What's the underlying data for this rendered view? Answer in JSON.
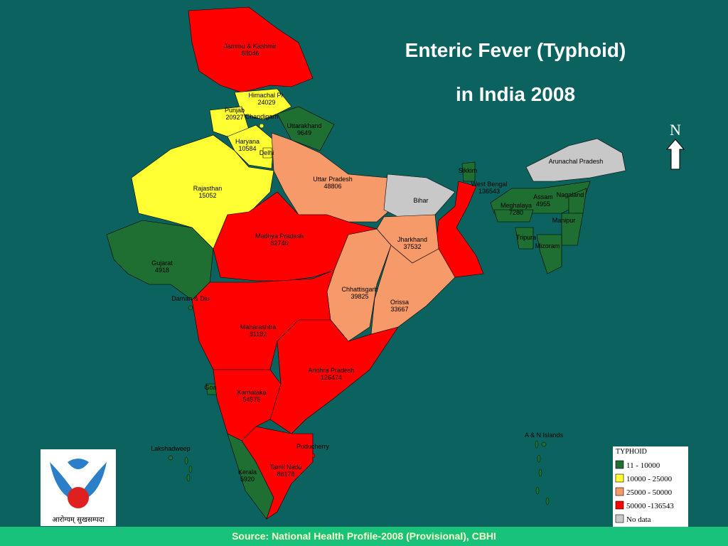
{
  "title": "Enteric Fever (Typhoid)",
  "subtitle": "in India 2008",
  "north": "N",
  "regions": [
    {
      "name": "Jammu & Kashmir",
      "value": 68046,
      "color": "#ff0000"
    },
    {
      "name": "Himachal Pr.",
      "value": 24029,
      "color": "#ffff33"
    },
    {
      "name": "Punjab",
      "value": 20927,
      "color": "#ffff33"
    },
    {
      "name": "Chandigarh",
      "color": "#ffff33"
    },
    {
      "name": "Uttarakhand",
      "value": 9649,
      "color": "#1f6e32"
    },
    {
      "name": "Haryana",
      "value": 10584,
      "color": "#ffff33"
    },
    {
      "name": "Delhi",
      "color": "#ffff33"
    },
    {
      "name": "Rajasthan",
      "value": 15052,
      "color": "#ffff33"
    },
    {
      "name": "Uttar Pradesh",
      "value": 48806,
      "color": "#f79a6a"
    },
    {
      "name": "Sikkim",
      "color": "#1f6e32"
    },
    {
      "name": "Arunachal Pradesh",
      "color": "#c8c8c8"
    },
    {
      "name": "Bihar",
      "color": "#c8c8c8"
    },
    {
      "name": "West Bengal",
      "value": 136543,
      "color": "#ff0000"
    },
    {
      "name": "Assam",
      "value": 4955,
      "color": "#1f6e32"
    },
    {
      "name": "Nagaland",
      "color": "#1f6e32"
    },
    {
      "name": "Meghalaya",
      "value": 7280,
      "color": "#1f6e32"
    },
    {
      "name": "Manipur",
      "color": "#1f6e32"
    },
    {
      "name": "Tripura",
      "color": "#1f6e32"
    },
    {
      "name": "Mizoram",
      "color": "#1f6e32"
    },
    {
      "name": "Gujarat",
      "value": 4918,
      "color": "#1f6e32"
    },
    {
      "name": "Madhya Pradesh",
      "value": 82746,
      "color": "#ff0000"
    },
    {
      "name": "Jharkhand",
      "value": 37532,
      "color": "#f79a6a"
    },
    {
      "name": "Chhattisgarh",
      "value": 39825,
      "color": "#f79a6a"
    },
    {
      "name": "Orissa",
      "value": 33667,
      "color": "#f79a6a"
    },
    {
      "name": "Daman & Diu",
      "color": "#1f6e32"
    },
    {
      "name": "Maharashtra",
      "value": 81182,
      "color": "#ff0000"
    },
    {
      "name": "Andhra Pradesh",
      "value": 126474,
      "color": "#ff0000"
    },
    {
      "name": "Goa",
      "color": "#1f6e32"
    },
    {
      "name": "Karnataka",
      "value": 54575,
      "color": "#ff0000"
    },
    {
      "name": "Lakshadweep",
      "color": "#1f6e32"
    },
    {
      "name": "Puducherry",
      "color": "#ff0000"
    },
    {
      "name": "Kerala",
      "value": 5920,
      "color": "#1f6e32"
    },
    {
      "name": "Tamil Nadu",
      "value": 88178,
      "color": "#ff0000"
    },
    {
      "name": "A & N Islands",
      "color": "#1f6e32"
    }
  ],
  "legend": {
    "title": "TYPHOID",
    "items": [
      {
        "label": "11 - 10000",
        "color": "#1f6e32"
      },
      {
        "label": "10000 - 25000",
        "color": "#ffff33"
      },
      {
        "label": "25000 - 50000",
        "color": "#f79a6a"
      },
      {
        "label": "50000 -136543",
        "color": "#ff0000"
      },
      {
        "label": "No data",
        "color": "#c8c8c8"
      }
    ]
  },
  "logo_text": "आरोग्यम् सुखसम्पदा",
  "source": "Source: National Health Profile-2008 (Provisional), CBHI"
}
